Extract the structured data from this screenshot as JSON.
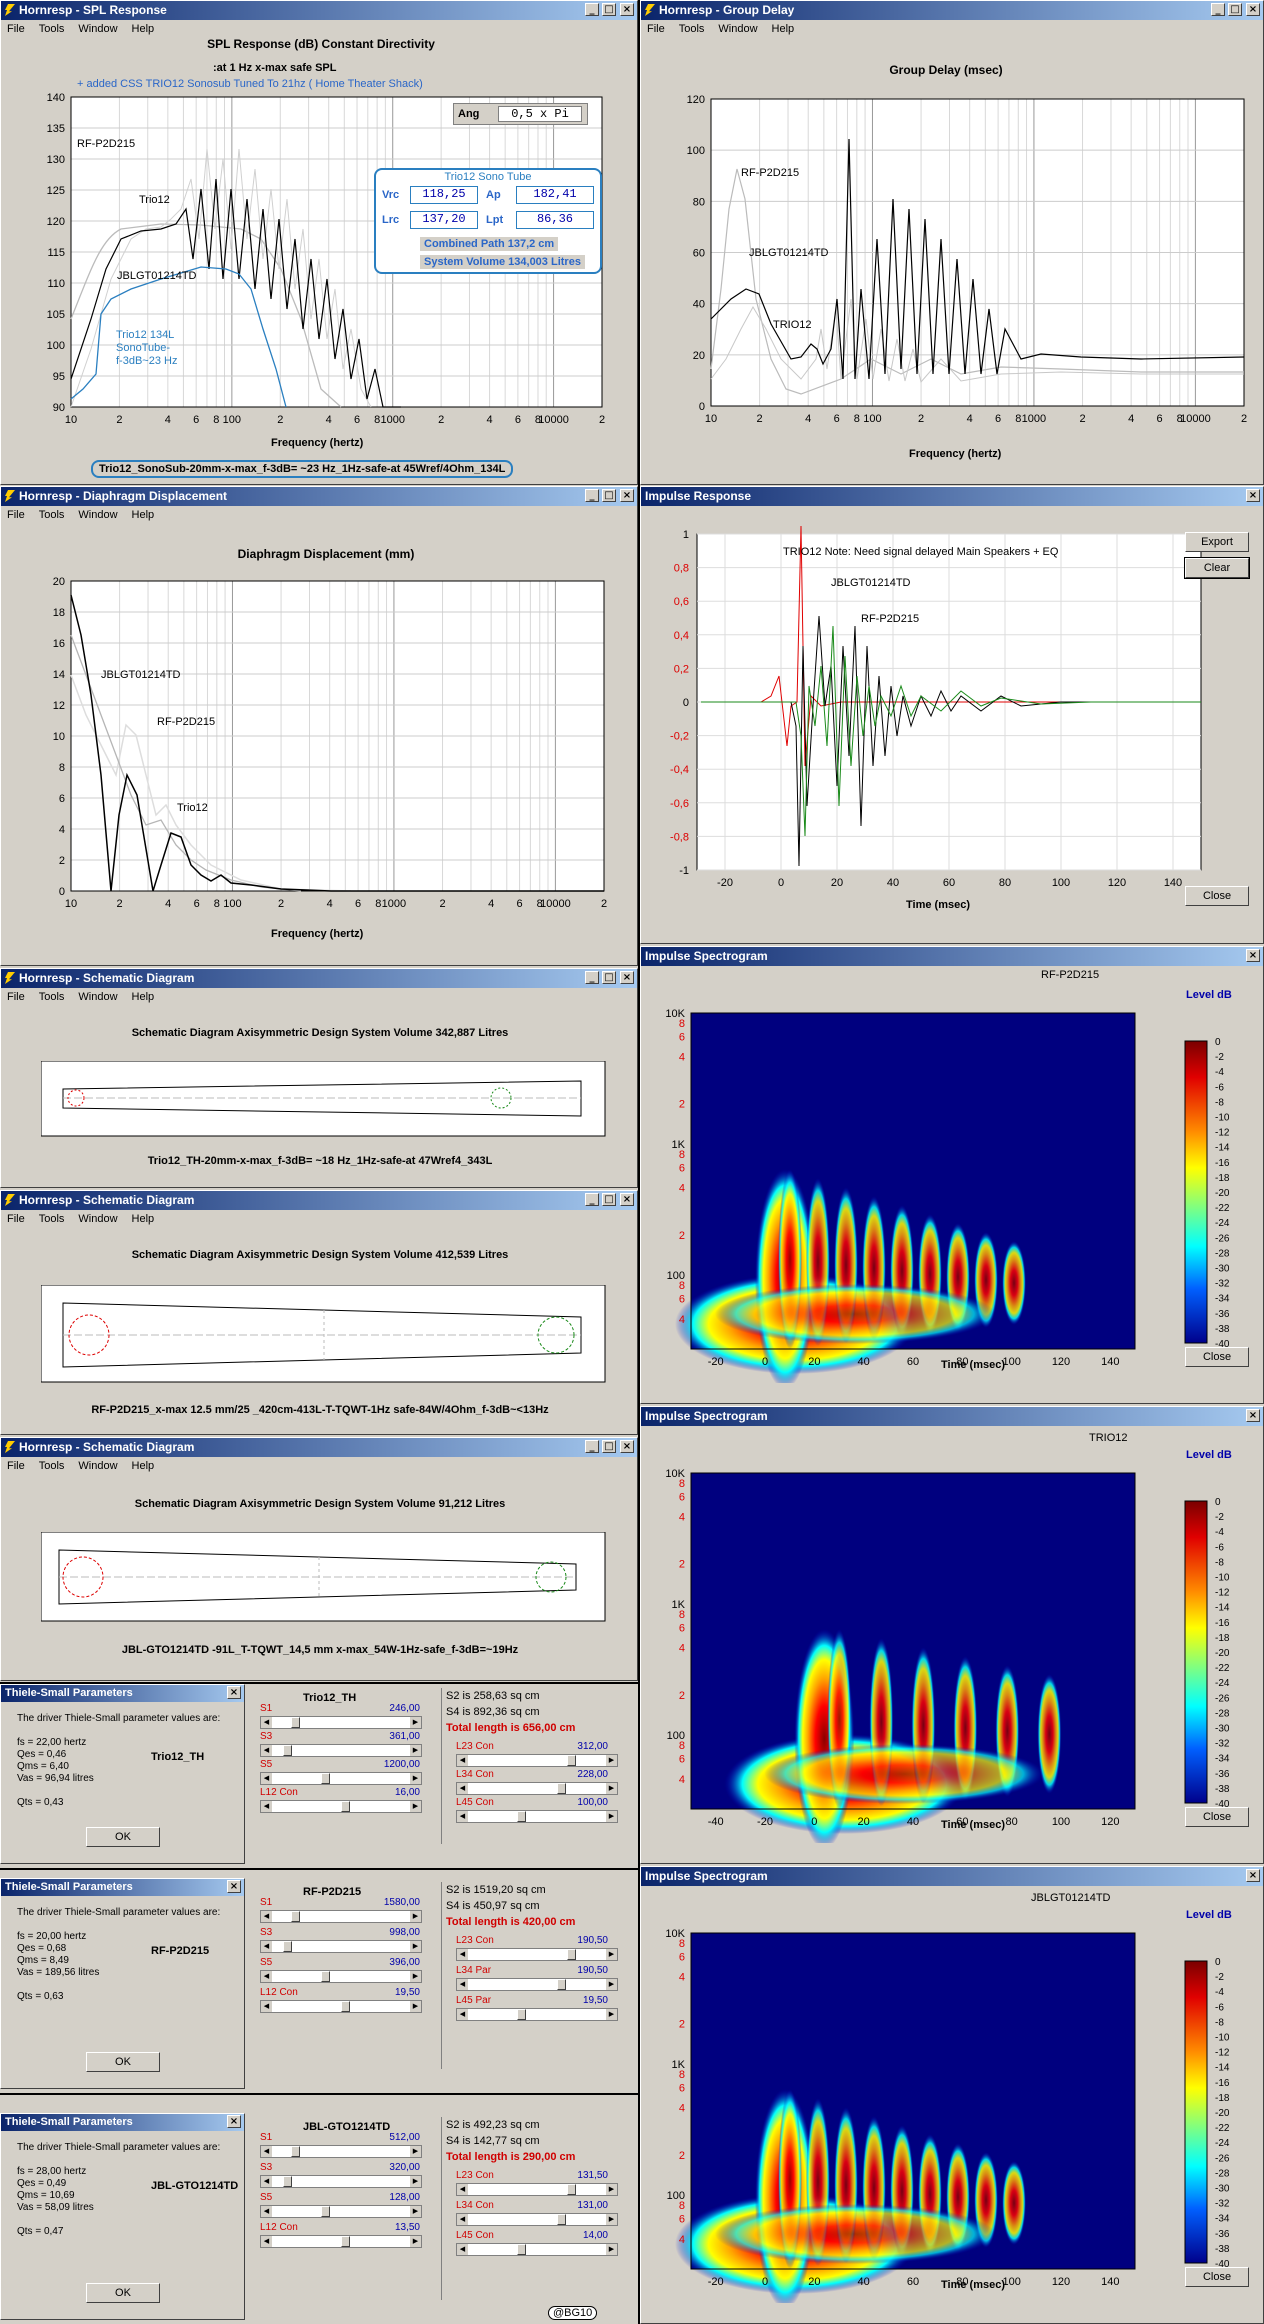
{
  "spl": {
    "title": "Hornresp - SPL Response",
    "menu": [
      "File",
      "Tools",
      "Window",
      "Help"
    ],
    "chart_title": "SPL Response (dB)    Constant Directivity",
    "subtitle": ":at 1 Hz x-max safe SPL",
    "note": "+ added CSS TRIO12 Sonosub Tuned To 21hz ( Home Theater Shack)",
    "ang_label": "Ang",
    "ang_value": "0,5 x Pi",
    "box_title": "Trio12 Sono Tube",
    "vrc_l": "Vrc",
    "vrc": "118,25",
    "ap_l": "Ap",
    "ap": "182,41",
    "lrc_l": "Lrc",
    "lrc": "137,20",
    "lpt_l": "Lpt",
    "lpt": "86,36",
    "combined": "Combined    Path 137,2 cm",
    "sysvol": "System Volume 134,003 Litres",
    "ann1": "RF-P2D215",
    "ann2": "Trio12",
    "ann3": "JBLGT01214TD",
    "ann4": "Trio12 134L",
    "ann5": "SonoTube-",
    "ann6": "f-3dB~23 Hz",
    "xlabel": "Frequency (hertz)",
    "caption": "Trio12_SonoSub-20mm-x-max_f-3dB= ~23 Hz_1Hz-safe-at 45Wref/4Ohm_134L"
  },
  "gd": {
    "title": "Hornresp - Group Delay",
    "menu": [
      "File",
      "Tools",
      "Window",
      "Help"
    ],
    "chart_title": "Group Delay (msec)",
    "xlabel": "Frequency (hertz)",
    "ann1": "RF-P2D215",
    "ann2": "JBLGT01214TD",
    "ann3": "TRIO12"
  },
  "dd": {
    "title": "Hornresp - Diaphragm Displacement",
    "menu": [
      "File",
      "Tools",
      "Window",
      "Help"
    ],
    "chart_title": "Diaphragm Displacement (mm)",
    "xlabel": "Frequency (hertz)",
    "ann1": "JBLGT01214TD",
    "ann2": "RF-P2D215",
    "ann3": "Trio12"
  },
  "ir": {
    "title": "Impulse Response",
    "note": "TRIO12 Note: Need signal delayed Main Speakers + EQ",
    "ann1": "JBLGT01214TD",
    "ann2": "RF-P2D215",
    "xlabel": "Time (msec)",
    "export": "Export",
    "clear": "Clear",
    "close": "Close"
  },
  "schem": [
    {
      "title": "Hornresp - Schematic Diagram",
      "heading": "Schematic Diagram   Axisymmetric Design   System Volume 342,887 Litres",
      "caption": "Trio12_TH-20mm-x-max_f-3dB= ~18 Hz_1Hz-safe-at 47Wref4_343L"
    },
    {
      "title": "Hornresp - Schematic Diagram",
      "heading": "Schematic Diagram   Axisymmetric Design   System Volume 412,539 Litres",
      "caption": "RF-P2D215_x-max 12.5 mm/25 _420cm-413L-T-TQWT-1Hz safe-84W/4Ohm_f-3dB~<13Hz"
    },
    {
      "title": "Hornresp - Schematic Diagram",
      "heading": "Schematic Diagram   Axisymmetric Design   System Volume 91,212 Litres",
      "caption": "JBL-GTO1214TD -91L_T-TQWT_14,5 mm x-max_54W-1Hz-safe_f-3dB=~19Hz"
    }
  ],
  "schem_menu": [
    "File",
    "Tools",
    "Window",
    "Help"
  ],
  "spec": [
    {
      "title": "Impulse Spectrogram",
      "name": "RF-P2D215",
      "close": "Close"
    },
    {
      "title": "Impulse Spectrogram",
      "name": "TRIO12",
      "close": "Close"
    },
    {
      "title": "Impulse Spectrogram",
      "name": "JBLGT01214TD",
      "close": "Close"
    }
  ],
  "spec_xlabel": "Time (msec)",
  "level_label": "Level  dB",
  "ts": [
    {
      "title": "Thiele-Small Parameters",
      "intro": "The driver Thiele-Small parameter values are:",
      "fs": "fs = 22,00 hertz",
      "qes": "Qes = 0,46",
      "qms": "Qms = 6,40",
      "vas": "Vas = 96,94 litres",
      "qts": "Qts = 0,43",
      "name": "Trio12_TH",
      "ok": "OK",
      "mid_name": "Trio12_TH",
      "s2": "S2 is 258,63 sq cm",
      "s4": "S4 is 892,36 sq cm",
      "total": "Total length is 656,00 cm",
      "left": [
        [
          "S1",
          "246,00"
        ],
        [
          "S3",
          "361,00"
        ],
        [
          "S5",
          "1200,00"
        ],
        [
          "L12  Con",
          "16,00"
        ]
      ],
      "right": [
        [
          "L23  Con",
          "312,00"
        ],
        [
          "L34  Con",
          "228,00"
        ],
        [
          "L45  Con",
          "100,00"
        ]
      ]
    },
    {
      "title": "Thiele-Small Parameters",
      "intro": "The driver Thiele-Small parameter values are:",
      "fs": "fs = 20,00 hertz",
      "qes": "Qes = 0,68",
      "qms": "Qms = 8,49",
      "vas": "Vas = 189,56 litres",
      "qts": "Qts = 0,63",
      "name": "RF-P2D215",
      "ok": "OK",
      "mid_name": "RF-P2D215",
      "s2": "S2 is 1519,20 sq cm",
      "s4": "S4 is 450,97 sq cm",
      "total": "Total length is 420,00 cm",
      "left": [
        [
          "S1",
          "1580,00"
        ],
        [
          "S3",
          "998,00"
        ],
        [
          "S5",
          "396,00"
        ],
        [
          "L12  Con",
          "19,50"
        ]
      ],
      "right": [
        [
          "L23  Con",
          "190,50"
        ],
        [
          "L34  Par",
          "190,50"
        ],
        [
          "L45  Par",
          "19,50"
        ]
      ]
    },
    {
      "title": "Thiele-Small Parameters",
      "intro": "The driver Thiele-Small parameter values are:",
      "fs": "fs = 28,00 hertz",
      "qes": "Qes = 0,49",
      "qms": "Qms = 10,69",
      "vas": "Vas = 58,09 litres",
      "qts": "Qts = 0,47",
      "name": "JBL-GTO1214TD",
      "ok": "OK",
      "mid_name": "JBL-GTO1214TD",
      "s2": "S2 is 492,23 sq cm",
      "s4": "S4 is 142,77 sq cm",
      "total": "Total length is 290,00 cm",
      "left": [
        [
          "S1",
          "512,00"
        ],
        [
          "S3",
          "320,00"
        ],
        [
          "S5",
          "128,00"
        ],
        [
          "L12  Con",
          "13,50"
        ]
      ],
      "right": [
        [
          "L23  Con",
          "131,50"
        ],
        [
          "L34  Con",
          "131,00"
        ],
        [
          "L45  Con",
          "14,00"
        ]
      ]
    }
  ],
  "badge": "@BG10",
  "chart_data": [
    {
      "type": "line",
      "title": "SPL Response (dB)",
      "xlabel": "Frequency (hertz)",
      "xscale": "log",
      "xlim": [
        10,
        20000
      ],
      "ylim": [
        90,
        140
      ],
      "series": [
        {
          "name": "RF-P2D215"
        },
        {
          "name": "Trio12"
        },
        {
          "name": "JBLGT01214TD"
        },
        {
          "name": "Trio12 134L SonoTube-f-3dB~23 Hz"
        }
      ]
    },
    {
      "type": "line",
      "title": "Group Delay (msec)",
      "xlabel": "Frequency (hertz)",
      "xscale": "log",
      "xlim": [
        10,
        20000
      ],
      "ylim": [
        0,
        120
      ],
      "series": [
        {
          "name": "RF-P2D215"
        },
        {
          "name": "JBLGT01214TD"
        },
        {
          "name": "TRIO12"
        }
      ]
    },
    {
      "type": "line",
      "title": "Diaphragm Displacement (mm)",
      "xlabel": "Frequency (hertz)",
      "xscale": "log",
      "xlim": [
        10,
        20000
      ],
      "ylim": [
        0,
        20
      ],
      "series": [
        {
          "name": "JBLGT01214TD"
        },
        {
          "name": "RF-P2D215"
        },
        {
          "name": "Trio12"
        }
      ]
    },
    {
      "type": "line",
      "title": "Impulse Response",
      "xlabel": "Time (msec)",
      "xlim": [
        -30,
        150
      ],
      "ylim": [
        -1,
        1
      ],
      "series": [
        {
          "name": "TRIO12"
        },
        {
          "name": "JBLGT01214TD"
        },
        {
          "name": "RF-P2D215"
        }
      ]
    }
  ]
}
